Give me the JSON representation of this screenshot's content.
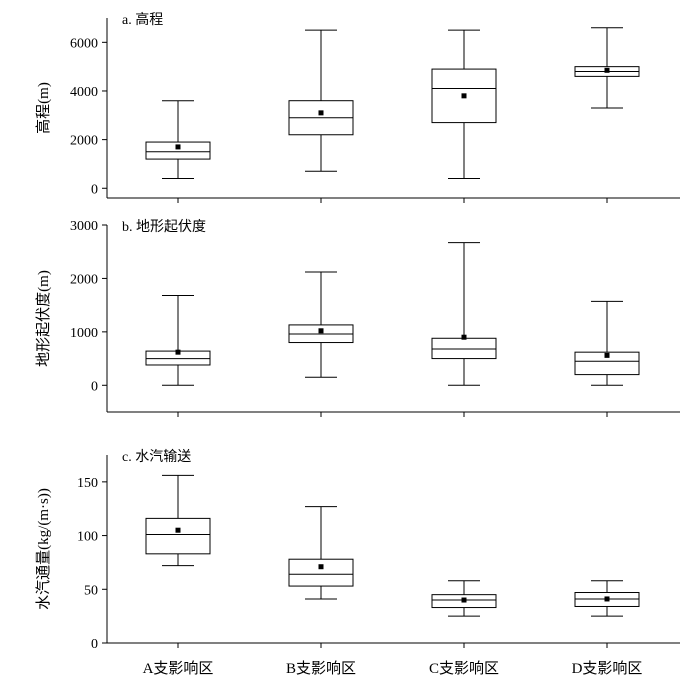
{
  "chart_data": [
    {
      "type": "box",
      "title": "a. 高程",
      "ylabel": "高程(m)",
      "ylim": [
        -400,
        7000
      ],
      "yticks": [
        0,
        2000,
        4000,
        6000
      ],
      "categories": [
        "A支影响区",
        "B支影响区",
        "C支影响区",
        "D支影响区"
      ],
      "boxes": [
        {
          "min": 400,
          "q1": 1200,
          "median": 1500,
          "q3": 1900,
          "max": 3600,
          "mean": 1700
        },
        {
          "min": 700,
          "q1": 2200,
          "median": 2900,
          "q3": 3600,
          "max": 6500,
          "mean": 3100
        },
        {
          "min": 400,
          "q1": 2700,
          "median": 4100,
          "q3": 4900,
          "max": 6500,
          "mean": 3800
        },
        {
          "min": 3300,
          "q1": 4600,
          "median": 4800,
          "q3": 5000,
          "max": 6600,
          "mean": 4850
        }
      ]
    },
    {
      "type": "box",
      "title": "b. 地形起伏度",
      "ylabel": "地形起伏度(m)",
      "ylim": [
        -500,
        3000
      ],
      "yticks": [
        0,
        1000,
        2000,
        3000
      ],
      "categories": [
        "A支影响区",
        "B支影响区",
        "C支影响区",
        "D支影响区"
      ],
      "boxes": [
        {
          "min": 0,
          "q1": 380,
          "median": 500,
          "q3": 640,
          "max": 1680,
          "mean": 620
        },
        {
          "min": 150,
          "q1": 800,
          "median": 960,
          "q3": 1130,
          "max": 2120,
          "mean": 1020
        },
        {
          "min": 0,
          "q1": 500,
          "median": 680,
          "q3": 880,
          "max": 2670,
          "mean": 900
        },
        {
          "min": 0,
          "q1": 200,
          "median": 450,
          "q3": 620,
          "max": 1570,
          "mean": 560
        }
      ]
    },
    {
      "type": "box",
      "title": "c. 水汽输送",
      "ylabel": "水汽通量(kg/(m·s))",
      "ylim": [
        0,
        175
      ],
      "yticks": [
        0,
        50,
        100,
        150
      ],
      "categories": [
        "A支影响区",
        "B支影响区",
        "C支影响区",
        "D支影响区"
      ],
      "boxes": [
        {
          "min": 72,
          "q1": 83,
          "median": 101,
          "q3": 116,
          "max": 156,
          "mean": 105
        },
        {
          "min": 41,
          "q1": 53,
          "median": 64,
          "q3": 78,
          "max": 127,
          "mean": 71
        },
        {
          "min": 25,
          "q1": 33,
          "median": 40,
          "q3": 45,
          "max": 58,
          "mean": 40
        },
        {
          "min": 25,
          "q1": 34,
          "median": 41,
          "q3": 47,
          "max": 58,
          "mean": 41
        }
      ]
    }
  ]
}
